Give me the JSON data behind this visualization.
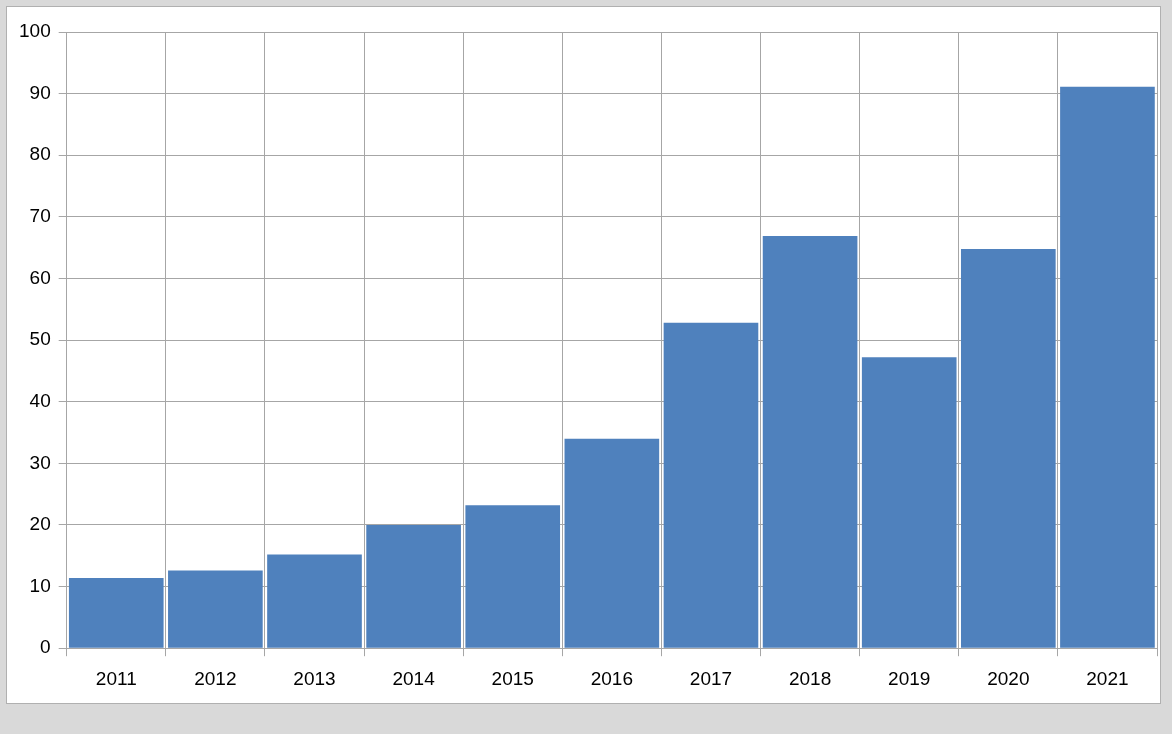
{
  "chart_data": {
    "type": "bar",
    "categories": [
      "2011",
      "2012",
      "2013",
      "2014",
      "2015",
      "2016",
      "2017",
      "2018",
      "2019",
      "2020",
      "2021"
    ],
    "values": [
      11.4,
      12.6,
      15.2,
      20.0,
      23.2,
      34.0,
      52.8,
      66.9,
      47.2,
      64.8,
      91.1
    ],
    "color": "#4f81bd",
    "ylim": [
      0,
      100
    ],
    "yticks": [
      0,
      10,
      20,
      30,
      40,
      50,
      60,
      70,
      80,
      90,
      100
    ],
    "grid": true
  }
}
